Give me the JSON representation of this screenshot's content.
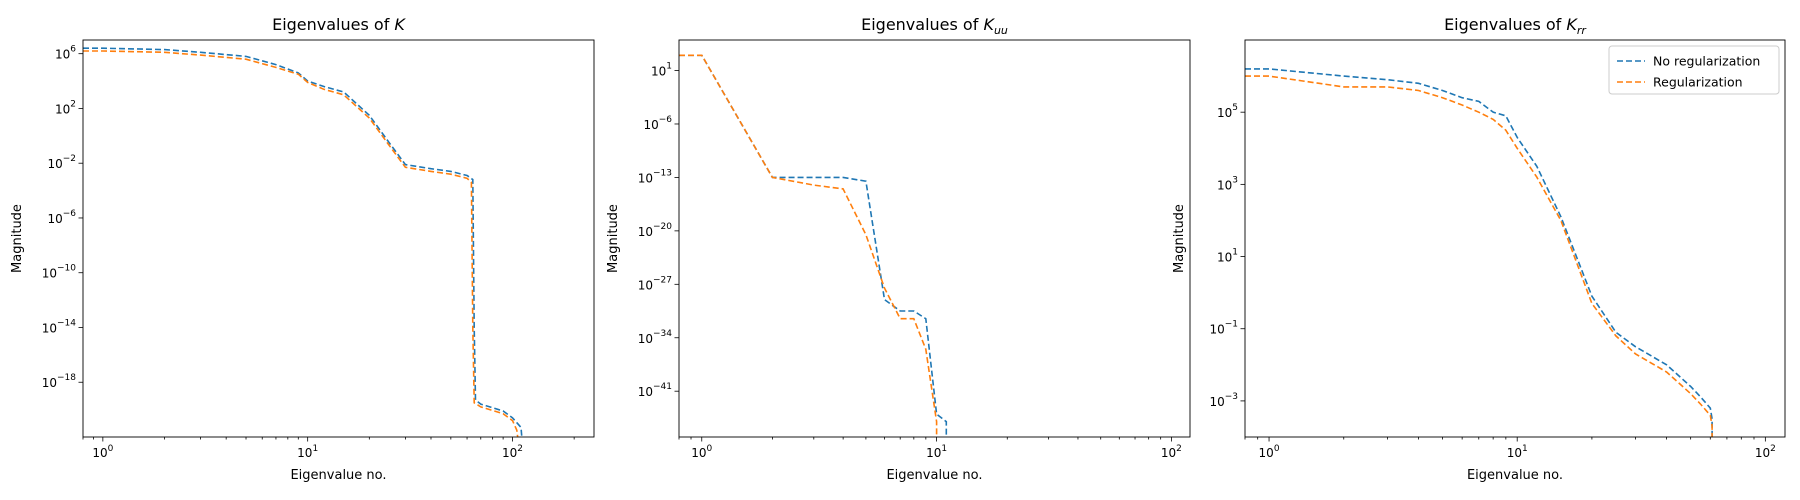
{
  "chart_data": [
    {
      "type": "line",
      "title": "Eigenvalues of K",
      "title_prefix": "Eigenvalues of ",
      "title_symbol": "K",
      "title_subscript": "",
      "xlabel": "Eigenvalue no.",
      "ylabel": "Magnitude",
      "xscale": "log",
      "yscale": "log",
      "xlim": [
        0.8,
        250
      ],
      "ylim_exp": [
        -22,
        7
      ],
      "xticks": [
        {
          "exp": 0,
          "label": "10^0"
        },
        {
          "exp": 1,
          "label": "10^1"
        },
        {
          "exp": 2,
          "label": "10^2"
        }
      ],
      "yticks": [
        {
          "exp": 6,
          "label": "10^6"
        },
        {
          "exp": 2,
          "label": "10^2"
        },
        {
          "exp": -2,
          "label": "10^-2"
        },
        {
          "exp": -6,
          "label": "10^-6"
        },
        {
          "exp": -10,
          "label": "10^-10"
        },
        {
          "exp": -14,
          "label": "10^-14"
        },
        {
          "exp": -18,
          "label": "10^-18"
        }
      ],
      "legend": false,
      "series": [
        {
          "name": "No regularization",
          "color": "#1f77b4",
          "x": [
            0.8,
            1,
            2,
            3,
            5,
            7,
            9,
            10,
            12,
            15,
            20,
            25,
            30,
            40,
            50,
            60,
            64,
            65,
            66,
            70,
            90,
            100,
            110,
            111
          ],
          "log10_y": [
            6.4,
            6.4,
            6.3,
            6.1,
            5.8,
            5.2,
            4.6,
            4.0,
            3.6,
            3.2,
            1.5,
            -0.5,
            -2.1,
            -2.4,
            -2.6,
            -2.9,
            -3.2,
            -14,
            -19.3,
            -19.6,
            -20.1,
            -20.6,
            -21.3,
            -22
          ]
        },
        {
          "name": "Regularization",
          "color": "#ff7f0e",
          "x": [
            0.8,
            1,
            2,
            3,
            5,
            7,
            9,
            10,
            12,
            15,
            20,
            25,
            30,
            40,
            50,
            60,
            63,
            64,
            65,
            70,
            90,
            100,
            105,
            106
          ],
          "log10_y": [
            6.2,
            6.2,
            6.1,
            5.9,
            5.6,
            5.0,
            4.5,
            3.9,
            3.4,
            3.0,
            1.3,
            -0.7,
            -2.3,
            -2.6,
            -2.8,
            -3.1,
            -3.4,
            -14,
            -19.5,
            -19.8,
            -20.3,
            -20.8,
            -21.5,
            -22
          ]
        }
      ]
    },
    {
      "type": "line",
      "title": "Eigenvalues of K_uu",
      "title_prefix": "Eigenvalues of ",
      "title_symbol": "K",
      "title_subscript": "uu",
      "xlabel": "Eigenvalue no.",
      "ylabel": "Magnitude",
      "xscale": "log",
      "yscale": "log",
      "xlim": [
        0.8,
        120
      ],
      "ylim_exp": [
        -47,
        5
      ],
      "xticks": [
        {
          "exp": 0,
          "label": "10^0"
        },
        {
          "exp": 1,
          "label": "10^1"
        },
        {
          "exp": 2,
          "label": "10^2"
        }
      ],
      "yticks": [
        {
          "exp": 1,
          "label": "10^1"
        },
        {
          "exp": -6,
          "label": "10^-6"
        },
        {
          "exp": -13,
          "label": "10^-13"
        },
        {
          "exp": -20,
          "label": "10^-20"
        },
        {
          "exp": -27,
          "label": "10^-27"
        },
        {
          "exp": -34,
          "label": "10^-34"
        },
        {
          "exp": -41,
          "label": "10^-41"
        }
      ],
      "legend": false,
      "series": [
        {
          "name": "No regularization",
          "color": "#1f77b4",
          "x": [
            0.8,
            1,
            2,
            3,
            4,
            5,
            6,
            7,
            8,
            9,
            10,
            11,
            11
          ],
          "log10_y": [
            3,
            3,
            -13,
            -13,
            -13,
            -13.5,
            -29,
            -30.5,
            -30.5,
            -31.5,
            -44,
            -45,
            -47
          ]
        },
        {
          "name": "Regularization",
          "color": "#ff7f0e",
          "x": [
            0.8,
            1,
            2,
            3,
            4,
            5,
            6,
            7,
            8,
            9,
            10,
            10
          ],
          "log10_y": [
            3,
            3,
            -13,
            -14,
            -14.5,
            -20.5,
            -27.5,
            -31.5,
            -31.5,
            -35.5,
            -45,
            -47
          ]
        }
      ]
    },
    {
      "type": "line",
      "title": "Eigenvalues of K_rr",
      "title_prefix": "Eigenvalues of ",
      "title_symbol": "K",
      "title_subscript": "rr",
      "xlabel": "Eigenvalue no.",
      "ylabel": "Magnitude",
      "xscale": "log",
      "yscale": "log",
      "xlim": [
        0.8,
        120
      ],
      "ylim_exp": [
        -4,
        7
      ],
      "xticks": [
        {
          "exp": 0,
          "label": "10^0"
        },
        {
          "exp": 1,
          "label": "10^1"
        },
        {
          "exp": 2,
          "label": "10^2"
        }
      ],
      "yticks": [
        {
          "exp": 5,
          "label": "10^5"
        },
        {
          "exp": 3,
          "label": "10^3"
        },
        {
          "exp": 1,
          "label": "10^1"
        },
        {
          "exp": -1,
          "label": "10^-1"
        },
        {
          "exp": -3,
          "label": "10^-3"
        }
      ],
      "legend": true,
      "legend_loc": "top-right",
      "series": [
        {
          "name": "No regularization",
          "color": "#1f77b4",
          "x": [
            0.8,
            1,
            2,
            3,
            4,
            5,
            6,
            7,
            8,
            9,
            10,
            12,
            15,
            20,
            25,
            30,
            40,
            50,
            55,
            60,
            61,
            61
          ],
          "log10_y": [
            6.2,
            6.2,
            6.0,
            5.9,
            5.8,
            5.6,
            5.4,
            5.3,
            5.0,
            4.9,
            4.3,
            3.5,
            2.1,
            -0.1,
            -1.1,
            -1.5,
            -2.0,
            -2.6,
            -2.9,
            -3.2,
            -3.5,
            -4.0
          ]
        },
        {
          "name": "Regularization",
          "color": "#ff7f0e",
          "x": [
            0.8,
            1,
            2,
            3,
            4,
            5,
            6,
            7,
            8,
            9,
            10,
            12,
            15,
            20,
            25,
            30,
            40,
            50,
            55,
            60,
            61,
            61
          ],
          "log10_y": [
            6.0,
            6.0,
            5.7,
            5.7,
            5.6,
            5.4,
            5.2,
            5.0,
            4.8,
            4.5,
            4.0,
            3.2,
            2.0,
            -0.3,
            -1.2,
            -1.7,
            -2.2,
            -2.8,
            -3.1,
            -3.4,
            -3.7,
            -4.0
          ]
        }
      ]
    }
  ]
}
